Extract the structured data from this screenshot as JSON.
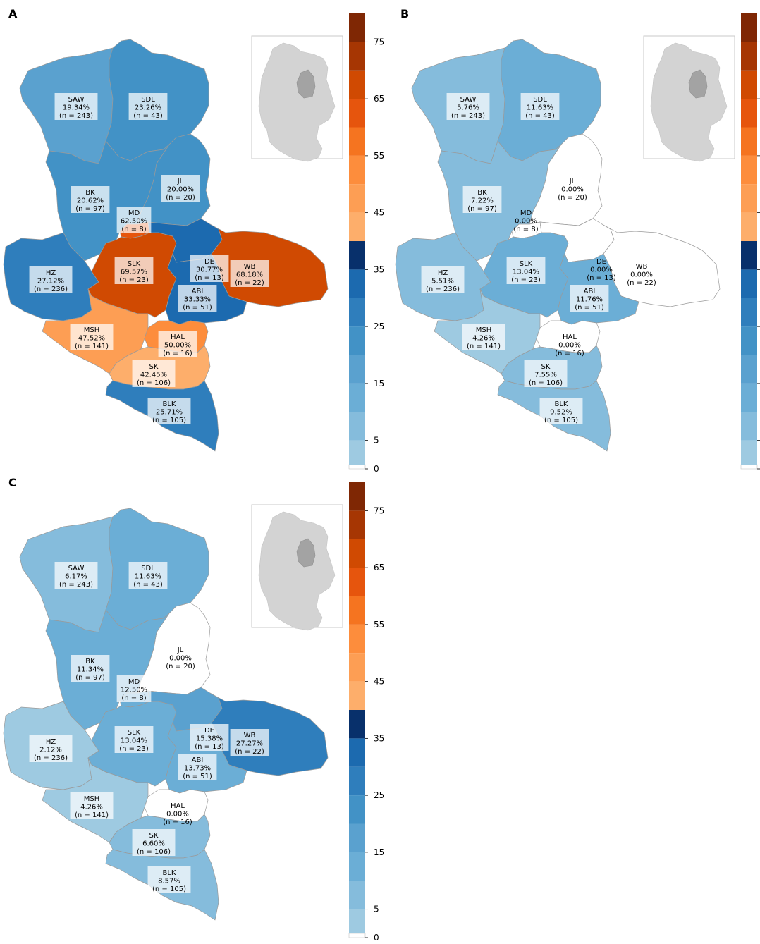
{
  "panels": [
    {
      "letter": "A",
      "districts": [
        {
          "code": "SAW",
          "pct": "19.34%",
          "n": "(n = 243)",
          "value": 19.34
        },
        {
          "code": "SDL",
          "pct": "23.26%",
          "n": "(n = 43)",
          "value": 23.26
        },
        {
          "code": "JL",
          "pct": "20.00%",
          "n": "(n = 20)",
          "value": 20.0
        },
        {
          "code": "BK",
          "pct": "20.62%",
          "n": "(n = 97)",
          "value": 20.62
        },
        {
          "code": "MD",
          "pct": "62.50%",
          "n": "(n = 8)",
          "value": 62.5
        },
        {
          "code": "HZ",
          "pct": "27.12%",
          "n": "(n = 236)",
          "value": 27.12
        },
        {
          "code": "SLK",
          "pct": "69.57%",
          "n": "(n = 23)",
          "value": 69.57
        },
        {
          "code": "DE",
          "pct": "30.77%",
          "n": "(n = 13)",
          "value": 30.77
        },
        {
          "code": "WB",
          "pct": "68.18%",
          "n": "(n = 22)",
          "value": 68.18
        },
        {
          "code": "ABI",
          "pct": "33.33%",
          "n": "(n = 51)",
          "value": 33.33
        },
        {
          "code": "MSH",
          "pct": "47.52%",
          "n": "(n = 141)",
          "value": 47.52
        },
        {
          "code": "HAL",
          "pct": "50.00%",
          "n": "(n = 16)",
          "value": 50.0
        },
        {
          "code": "SK",
          "pct": "42.45%",
          "n": "(n = 106)",
          "value": 42.45
        },
        {
          "code": "BLK",
          "pct": "25.71%",
          "n": "(n = 105)",
          "value": 25.71
        }
      ]
    },
    {
      "letter": "B",
      "districts": [
        {
          "code": "SAW",
          "pct": "5.76%",
          "n": "(n = 243)",
          "value": 5.76
        },
        {
          "code": "SDL",
          "pct": "11.63%",
          "n": "(n = 43)",
          "value": 11.63
        },
        {
          "code": "JL",
          "pct": "0.00%",
          "n": "(n = 20)",
          "value": 0.0
        },
        {
          "code": "BK",
          "pct": "7.22%",
          "n": "(n = 97)",
          "value": 7.22
        },
        {
          "code": "MD",
          "pct": "0.00%",
          "n": "(n = 8)",
          "value": 0.0
        },
        {
          "code": "HZ",
          "pct": "5.51%",
          "n": "(n = 236)",
          "value": 5.51
        },
        {
          "code": "SLK",
          "pct": "13.04%",
          "n": "(n = 23)",
          "value": 13.04
        },
        {
          "code": "DE",
          "pct": "0.00%",
          "n": "(n = 13)",
          "value": 0.0
        },
        {
          "code": "WB",
          "pct": "0.00%",
          "n": "(n = 22)",
          "value": 0.0
        },
        {
          "code": "ABI",
          "pct": "11.76%",
          "n": "(n = 51)",
          "value": 11.76
        },
        {
          "code": "MSH",
          "pct": "4.26%",
          "n": "(n = 141)",
          "value": 4.26
        },
        {
          "code": "HAL",
          "pct": "0.00%",
          "n": "(n = 16)",
          "value": 0.0
        },
        {
          "code": "SK",
          "pct": "7.55%",
          "n": "(n = 106)",
          "value": 7.55
        },
        {
          "code": "BLK",
          "pct": "9.52%",
          "n": "(n = 105)",
          "value": 9.52
        }
      ]
    },
    {
      "letter": "C",
      "districts": [
        {
          "code": "SAW",
          "pct": "6.17%",
          "n": "(n = 243)",
          "value": 6.17
        },
        {
          "code": "SDL",
          "pct": "11.63%",
          "n": "(n = 43)",
          "value": 11.63
        },
        {
          "code": "JL",
          "pct": "0.00%",
          "n": "(n = 20)",
          "value": 0.0
        },
        {
          "code": "BK",
          "pct": "11.34%",
          "n": "(n = 97)",
          "value": 11.34
        },
        {
          "code": "MD",
          "pct": "12.50%",
          "n": "(n = 8)",
          "value": 12.5
        },
        {
          "code": "HZ",
          "pct": "2.12%",
          "n": "(n = 236)",
          "value": 2.12
        },
        {
          "code": "SLK",
          "pct": "13.04%",
          "n": "(n = 23)",
          "value": 13.04
        },
        {
          "code": "DE",
          "pct": "15.38%",
          "n": "(n = 13)",
          "value": 15.38
        },
        {
          "code": "WB",
          "pct": "27.27%",
          "n": "(n = 22)",
          "value": 27.27
        },
        {
          "code": "ABI",
          "pct": "13.73%",
          "n": "(n = 51)",
          "value": 13.73
        },
        {
          "code": "MSH",
          "pct": "4.26%",
          "n": "(n = 141)",
          "value": 4.26
        },
        {
          "code": "HAL",
          "pct": "0.00%",
          "n": "(n = 16)",
          "value": 0.0
        },
        {
          "code": "SK",
          "pct": "6.60%",
          "n": "(n = 106)",
          "value": 6.6
        },
        {
          "code": "BLK",
          "pct": "8.57%",
          "n": "(n = 105)",
          "value": 8.57
        }
      ]
    }
  ],
  "colorbar": {
    "ticks": [
      "0",
      "5",
      "15",
      "25",
      "35",
      "45",
      "55",
      "65",
      "75"
    ],
    "range": [
      0,
      80
    ],
    "zero_color": "#ffffff",
    "steps": [
      {
        "from": 0,
        "to": 5,
        "color": "#9ecae1"
      },
      {
        "from": 5,
        "to": 10,
        "color": "#85bcdc"
      },
      {
        "from": 10,
        "to": 15,
        "color": "#6baed6"
      },
      {
        "from": 15,
        "to": 20,
        "color": "#5aa1cf"
      },
      {
        "from": 20,
        "to": 25,
        "color": "#4292c6"
      },
      {
        "from": 25,
        "to": 30,
        "color": "#2f7ebc"
      },
      {
        "from": 30,
        "to": 35,
        "color": "#1c6aaf"
      },
      {
        "from": 35,
        "to": 40,
        "color": "#08306b"
      },
      {
        "from": 40,
        "to": 45,
        "color": "#fdae6b"
      },
      {
        "from": 45,
        "to": 50,
        "color": "#fd9e54"
      },
      {
        "from": 50,
        "to": 55,
        "color": "#fd8d3c"
      },
      {
        "from": 55,
        "to": 60,
        "color": "#f57420"
      },
      {
        "from": 60,
        "to": 65,
        "color": "#e6550d"
      },
      {
        "from": 65,
        "to": 70,
        "color": "#d04a02"
      },
      {
        "from": 70,
        "to": 75,
        "color": "#a63603"
      },
      {
        "from": 75,
        "to": 80,
        "color": "#7f2704"
      }
    ]
  },
  "inset": {
    "land_color": "#d3d3d3",
    "highlight_color": "#a3a3a3",
    "frame_color": "#c8c8c8"
  }
}
